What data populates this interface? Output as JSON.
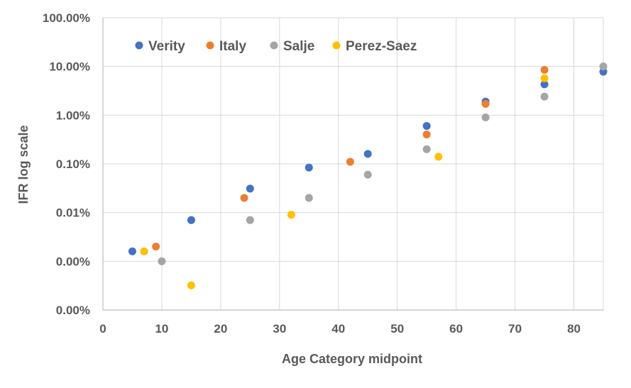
{
  "chart_data": {
    "type": "scatter",
    "xlabel": "Age Category midpoint",
    "ylabel": "IFR log scale",
    "xlim": [
      0,
      85
    ],
    "xticks": [
      "0",
      "10",
      "20",
      "30",
      "40",
      "50",
      "60",
      "70",
      "80"
    ],
    "ylim": [
      1e-06,
      1
    ],
    "yscale": "log",
    "yticks": [
      {
        "value": 1e-06,
        "label": "0.00%"
      },
      {
        "value": 1e-05,
        "label": "0.00%"
      },
      {
        "value": 0.0001,
        "label": "0.01%"
      },
      {
        "value": 0.001,
        "label": "0.10%"
      },
      {
        "value": 0.01,
        "label": "1.00%"
      },
      {
        "value": 0.1,
        "label": "10.00%"
      },
      {
        "value": 1,
        "label": "100.00%"
      }
    ],
    "grid": true,
    "legend_position": "top-left",
    "series": [
      {
        "name": "Verity",
        "color": "#4472C4",
        "points": [
          [
            5,
            1.6e-05
          ],
          [
            15,
            7e-05
          ],
          [
            25,
            0.00031
          ],
          [
            35,
            0.00084
          ],
          [
            45,
            0.0016
          ],
          [
            55,
            0.006
          ],
          [
            65,
            0.019
          ],
          [
            75,
            0.043
          ],
          [
            85,
            0.078
          ]
        ]
      },
      {
        "name": "Italy",
        "color": "#ED7D31",
        "points": [
          [
            9,
            2e-05
          ],
          [
            24,
            0.0002
          ],
          [
            42,
            0.0011
          ],
          [
            55,
            0.004
          ],
          [
            65,
            0.017
          ],
          [
            75,
            0.085
          ]
        ]
      },
      {
        "name": "Salje",
        "color": "#A5A5A5",
        "points": [
          [
            10,
            1e-05
          ],
          [
            25,
            7e-05
          ],
          [
            35,
            0.0002
          ],
          [
            45,
            0.0006
          ],
          [
            55,
            0.002
          ],
          [
            65,
            0.009
          ],
          [
            75,
            0.024
          ],
          [
            85,
            0.1
          ]
        ]
      },
      {
        "name": "Perez-Saez",
        "color": "#FFC000",
        "points": [
          [
            7,
            1.6e-05
          ],
          [
            15,
            3.2e-06
          ],
          [
            32,
            9e-05
          ],
          [
            57,
            0.0014
          ],
          [
            75,
            0.057
          ]
        ]
      }
    ]
  }
}
